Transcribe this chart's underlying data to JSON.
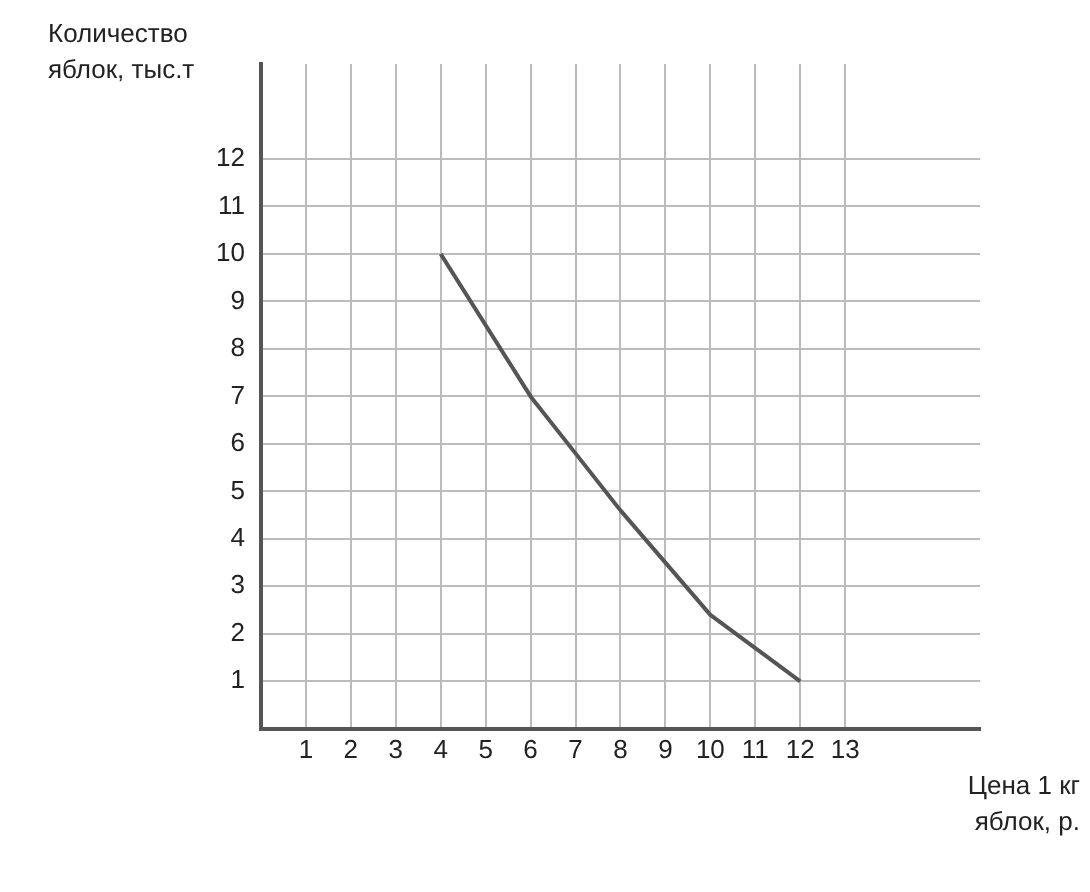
{
  "chart_data": {
    "type": "line",
    "xlabel": "Цена 1 кг яблок, р.",
    "ylabel": "Количество яблок, тыс.т",
    "x": [
      4,
      6,
      7,
      8,
      9,
      10,
      11,
      12
    ],
    "series": [
      {
        "color": "#555555",
        "values": [
          10,
          7,
          5.8,
          4.6,
          3.5,
          2.4,
          1.7,
          1
        ]
      }
    ],
    "xlim": [
      0,
      16
    ],
    "ylim": [
      0,
      14
    ],
    "xticks": [
      1,
      2,
      3,
      4,
      5,
      6,
      7,
      8,
      9,
      10,
      11,
      12,
      13
    ],
    "yticks": [
      1,
      2,
      3,
      4,
      5,
      6,
      7,
      8,
      9,
      10,
      11,
      12
    ],
    "grid": true,
    "legend": false,
    "marker": "none",
    "line_style": "solid"
  }
}
